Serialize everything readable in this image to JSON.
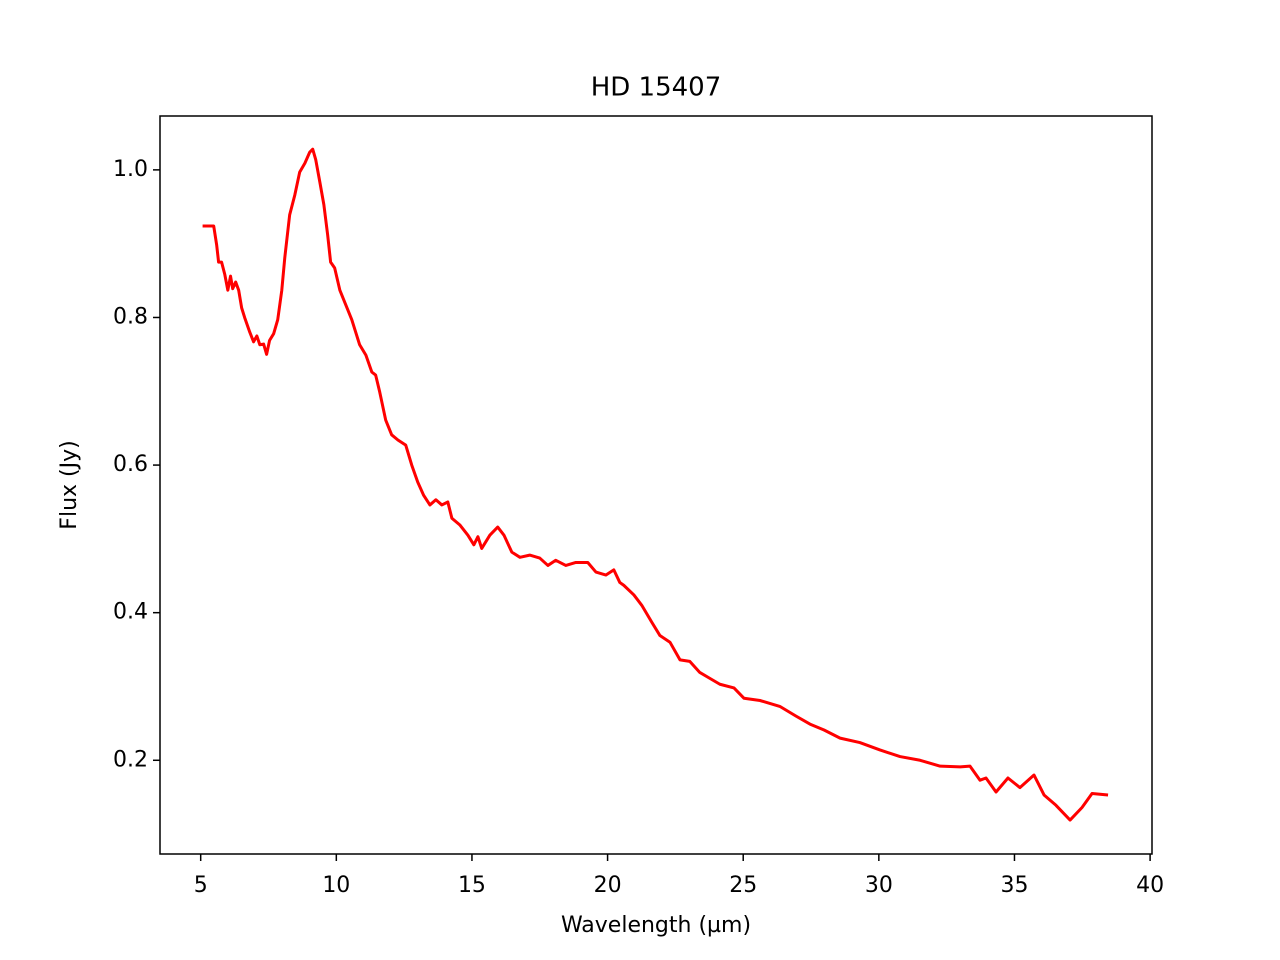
{
  "chart_data": {
    "type": "line",
    "title": "HD 15407",
    "xlabel": "Wavelength (µm)",
    "ylabel": "Flux (Jy)",
    "xlim": [
      3.5,
      40.07
    ],
    "ylim": [
      0.073,
      1.073
    ],
    "xticks": [
      5,
      10,
      15,
      20,
      25,
      30,
      35,
      40
    ],
    "yticks": [
      0.2,
      0.4,
      0.6,
      0.8,
      {
        "value": 1,
        "label": "1.0"
      }
    ],
    "grid": false,
    "series": [
      {
        "name": "HD 15407",
        "color": "#ff0000",
        "x": [
          5.07,
          5.48,
          5.59,
          5.66,
          5.77,
          5.89,
          6.0,
          6.1,
          6.18,
          6.29,
          6.4,
          6.51,
          6.62,
          6.81,
          6.95,
          7.07,
          7.18,
          7.32,
          7.43,
          7.54,
          7.69,
          7.84,
          7.99,
          8.1,
          8.28,
          8.47,
          8.65,
          8.84,
          9.02,
          9.13,
          9.24,
          9.39,
          9.54,
          9.68,
          9.79,
          9.94,
          10.13,
          10.35,
          10.57,
          10.86,
          11.09,
          11.31,
          11.45,
          11.6,
          11.82,
          12.04,
          12.27,
          12.56,
          12.78,
          13.0,
          13.22,
          13.45,
          13.67,
          13.89,
          14.11,
          14.26,
          14.55,
          14.85,
          15.07,
          15.22,
          15.36,
          15.66,
          15.95,
          16.18,
          16.47,
          16.77,
          17.13,
          17.5,
          17.8,
          18.09,
          18.46,
          18.83,
          19.27,
          19.57,
          19.94,
          20.23,
          20.45,
          20.6,
          20.97,
          21.26,
          21.63,
          21.93,
          22.3,
          22.67,
          23.03,
          23.4,
          23.77,
          24.14,
          24.66,
          25.03,
          25.62,
          26.35,
          26.94,
          27.46,
          27.98,
          28.57,
          29.3,
          30.04,
          30.78,
          31.52,
          32.26,
          33.0,
          33.36,
          33.73,
          33.95,
          34.32,
          34.76,
          35.2,
          35.72,
          36.09,
          36.53,
          37.05,
          37.49,
          37.86,
          38.45
        ],
        "values": [
          0.924,
          0.924,
          0.898,
          0.875,
          0.875,
          0.858,
          0.837,
          0.856,
          0.839,
          0.848,
          0.837,
          0.813,
          0.8,
          0.78,
          0.767,
          0.775,
          0.763,
          0.764,
          0.75,
          0.769,
          0.778,
          0.797,
          0.837,
          0.881,
          0.939,
          0.966,
          0.997,
          1.009,
          1.024,
          1.028,
          1.014,
          0.984,
          0.953,
          0.912,
          0.875,
          0.867,
          0.837,
          0.817,
          0.797,
          0.763,
          0.749,
          0.726,
          0.722,
          0.699,
          0.661,
          0.641,
          0.634,
          0.627,
          0.6,
          0.577,
          0.559,
          0.546,
          0.553,
          0.546,
          0.55,
          0.528,
          0.519,
          0.505,
          0.492,
          0.503,
          0.487,
          0.505,
          0.516,
          0.505,
          0.482,
          0.475,
          0.478,
          0.474,
          0.464,
          0.471,
          0.464,
          0.468,
          0.468,
          0.455,
          0.451,
          0.458,
          0.441,
          0.437,
          0.424,
          0.41,
          0.387,
          0.369,
          0.36,
          0.336,
          0.334,
          0.319,
          0.311,
          0.303,
          0.298,
          0.284,
          0.281,
          0.273,
          0.26,
          0.249,
          0.241,
          0.23,
          0.224,
          0.214,
          0.205,
          0.2,
          0.192,
          0.191,
          0.192,
          0.173,
          0.176,
          0.157,
          0.176,
          0.163,
          0.18,
          0.153,
          0.139,
          0.119,
          0.136,
          0.155,
          0.153
        ]
      }
    ]
  }
}
